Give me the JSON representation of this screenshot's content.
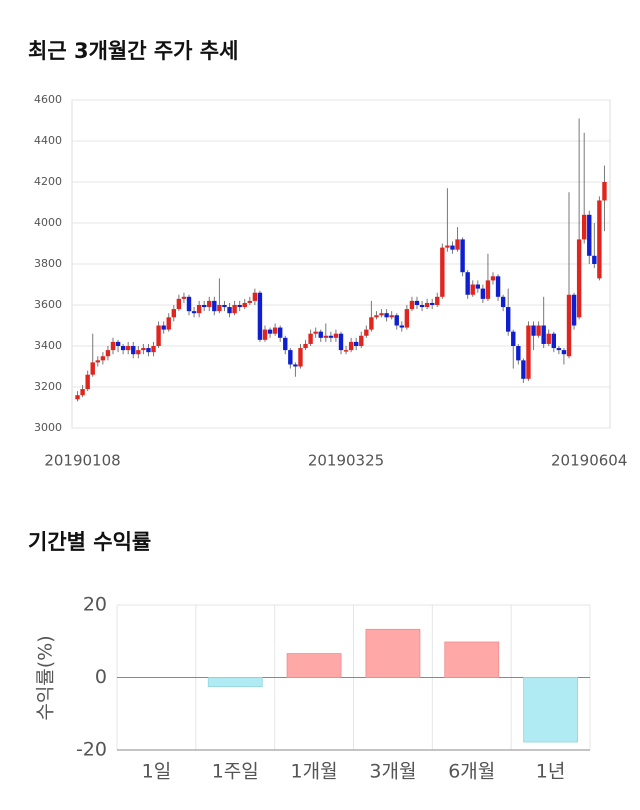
{
  "chart_data": [
    {
      "type": "candlestick",
      "title": "최근 3개월간 주가 추세",
      "categories": [
        "20190108",
        null,
        null,
        null,
        null,
        null,
        null,
        null,
        null,
        null,
        null,
        null,
        null,
        null,
        null,
        null,
        null,
        null,
        null,
        null,
        null,
        null,
        null,
        null,
        null,
        null,
        null,
        null,
        null,
        null,
        null,
        null,
        null,
        null,
        null,
        null,
        null,
        null,
        null,
        null,
        null,
        null,
        null,
        null,
        null,
        null,
        null,
        null,
        null,
        null,
        null,
        null,
        "20190325",
        null,
        null,
        null,
        null,
        null,
        null,
        null,
        null,
        null,
        null,
        null,
        null,
        null,
        null,
        null,
        null,
        null,
        null,
        null,
        null,
        null,
        null,
        null,
        null,
        null,
        null,
        null,
        null,
        null,
        null,
        null,
        null,
        null,
        null,
        null,
        null,
        null,
        null,
        null,
        null,
        null,
        null,
        null,
        null,
        null,
        null,
        null,
        "20190604",
        null,
        null,
        null,
        null
      ],
      "open": [
        3140,
        3160,
        3190,
        3260,
        3320,
        3330,
        3350,
        3380,
        3420,
        3400,
        3380,
        3400,
        3360,
        3380,
        3390,
        3370,
        3400,
        3500,
        3480,
        3540,
        3580,
        3630,
        3640,
        3570,
        3560,
        3600,
        3590,
        3620,
        3570,
        3600,
        3590,
        3560,
        3600,
        3590,
        3610,
        3620,
        3660,
        3430,
        3480,
        3460,
        3490,
        3440,
        3380,
        3310,
        3300,
        3390,
        3410,
        3460,
        3470,
        3440,
        3450,
        3440,
        3460,
        3380,
        3380,
        3420,
        3400,
        3450,
        3480,
        3540,
        3550,
        3560,
        3540,
        3550,
        3500,
        3490,
        3580,
        3620,
        3600,
        3590,
        3610,
        3600,
        3640,
        3880,
        3890,
        3870,
        3920,
        3760,
        3650,
        3700,
        3680,
        3630,
        3720,
        3740,
        3640,
        3590,
        3470,
        3400,
        3330,
        3240,
        3500,
        3450,
        3500,
        3410,
        3460,
        3390,
        3380,
        3350,
        3650,
        3540,
        3920,
        4040,
        3840,
        3730,
        4110
      ],
      "high": [
        3180,
        3210,
        3280,
        3460,
        3350,
        3370,
        3400,
        3440,
        3430,
        3410,
        3420,
        3420,
        3400,
        3410,
        3410,
        3420,
        3520,
        3520,
        3560,
        3600,
        3650,
        3660,
        3650,
        3590,
        3620,
        3620,
        3640,
        3640,
        3730,
        3620,
        3610,
        3620,
        3620,
        3630,
        3640,
        3680,
        3670,
        3500,
        3490,
        3510,
        3500,
        3450,
        3390,
        3320,
        3410,
        3430,
        3480,
        3490,
        3480,
        3510,
        3470,
        3480,
        3470,
        3400,
        3440,
        3440,
        3470,
        3500,
        3620,
        3570,
        3580,
        3580,
        3570,
        3560,
        3520,
        3600,
        3640,
        3640,
        3620,
        3630,
        3630,
        3660,
        3900,
        4170,
        3910,
        3980,
        3930,
        3770,
        3720,
        3720,
        3700,
        3850,
        3760,
        3750,
        3650,
        3680,
        3480,
        3410,
        3340,
        3520,
        3520,
        3520,
        3640,
        3480,
        3470,
        3400,
        3390,
        4150,
        3660,
        4510,
        4440,
        4060,
        4000,
        4130,
        4280
      ],
      "low": [
        3130,
        3150,
        3180,
        3250,
        3300,
        3310,
        3330,
        3360,
        3370,
        3360,
        3360,
        3340,
        3340,
        3360,
        3350,
        3350,
        3390,
        3460,
        3470,
        3520,
        3570,
        3610,
        3550,
        3540,
        3540,
        3570,
        3570,
        3550,
        3560,
        3570,
        3540,
        3550,
        3570,
        3580,
        3600,
        3600,
        3420,
        3420,
        3440,
        3450,
        3420,
        3360,
        3290,
        3250,
        3290,
        3380,
        3400,
        3440,
        3420,
        3420,
        3420,
        3420,
        3360,
        3360,
        3370,
        3380,
        3390,
        3440,
        3470,
        3530,
        3540,
        3520,
        3530,
        3480,
        3470,
        3480,
        3570,
        3580,
        3570,
        3580,
        3580,
        3590,
        3630,
        3860,
        3850,
        3860,
        3740,
        3630,
        3640,
        3660,
        3610,
        3620,
        3700,
        3620,
        3570,
        3450,
        3290,
        3310,
        3220,
        3230,
        3380,
        3440,
        3390,
        3400,
        3370,
        3360,
        3310,
        3340,
        3480,
        3530,
        3900,
        3800,
        3780,
        3720,
        3960
      ],
      "close": [
        3160,
        3190,
        3260,
        3320,
        3330,
        3350,
        3380,
        3420,
        3400,
        3380,
        3400,
        3360,
        3380,
        3390,
        3370,
        3400,
        3500,
        3480,
        3540,
        3580,
        3630,
        3640,
        3570,
        3560,
        3600,
        3590,
        3620,
        3570,
        3600,
        3590,
        3560,
        3600,
        3590,
        3610,
        3620,
        3660,
        3430,
        3480,
        3460,
        3490,
        3440,
        3380,
        3310,
        3300,
        3390,
        3410,
        3460,
        3470,
        3440,
        3450,
        3440,
        3460,
        3380,
        3380,
        3420,
        3400,
        3450,
        3480,
        3540,
        3550,
        3560,
        3540,
        3550,
        3500,
        3490,
        3580,
        3620,
        3600,
        3590,
        3610,
        3600,
        3640,
        3880,
        3890,
        3870,
        3920,
        3760,
        3650,
        3700,
        3680,
        3630,
        3720,
        3740,
        3640,
        3590,
        3470,
        3400,
        3330,
        3240,
        3500,
        3450,
        3500,
        3410,
        3460,
        3390,
        3380,
        3360,
        3650,
        3500,
        3920,
        4040,
        3840,
        3800,
        4110,
        4200
      ],
      "up_color": "#e0251e",
      "down_color": "#0d1fd0",
      "ylim": [
        3000,
        4600
      ],
      "yticks": [
        3000,
        3200,
        3400,
        3600,
        3800,
        4000,
        4200,
        4400,
        4600
      ],
      "grid": true
    },
    {
      "type": "bar",
      "title": "기간별 수익률",
      "ylabel": "수익률(%)",
      "categories": [
        "1일",
        "1주일",
        "1개월",
        "3개월",
        "6개월",
        "1년"
      ],
      "values": [
        0,
        -2.5,
        6.6,
        13.3,
        9.8,
        -17.8
      ],
      "positive_color": "#ffa8a8",
      "negative_color": "#b0ebf3",
      "ylim": [
        -20,
        20
      ],
      "yticks": [
        -20,
        0,
        20
      ],
      "grid": true
    }
  ]
}
